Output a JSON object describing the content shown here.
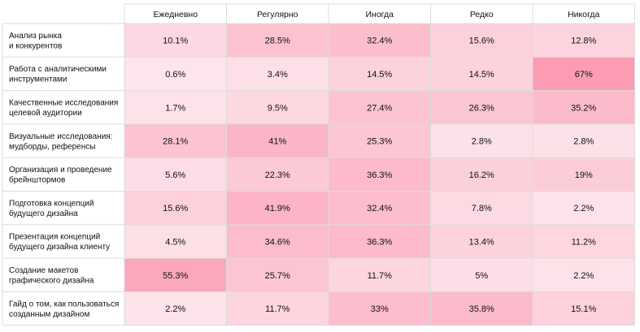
{
  "chart_data": {
    "type": "heatmap",
    "columns": [
      "Ежедневно",
      "Регулярно",
      "Иногда",
      "Редко",
      "Никогда"
    ],
    "rows": [
      {
        "label": [
          "Анализ рынка",
          "и конкурентов"
        ],
        "values": [
          10.1,
          28.5,
          32.4,
          15.6,
          12.8
        ]
      },
      {
        "label": [
          "Работа с аналитическими",
          "инструментами"
        ],
        "values": [
          0.6,
          3.4,
          14.5,
          14.5,
          67
        ]
      },
      {
        "label": [
          "Качественные исследования",
          "целевой аудитории"
        ],
        "values": [
          1.7,
          9.5,
          27.4,
          26.3,
          35.2
        ]
      },
      {
        "label": [
          "Визуальные исследования:",
          "мудборды, референсы"
        ],
        "values": [
          28.1,
          41,
          25.3,
          2.8,
          2.8
        ]
      },
      {
        "label": [
          "Организация и проведение",
          "брейнштормов"
        ],
        "values": [
          5.6,
          22.3,
          36.3,
          16.2,
          19
        ]
      },
      {
        "label": [
          "Подготовка концепций",
          "будущего дизайна"
        ],
        "values": [
          15.6,
          41.9,
          32.4,
          7.8,
          2.2
        ]
      },
      {
        "label": [
          "Презентация концепций",
          "будущего дизайна клиенту"
        ],
        "values": [
          4.5,
          34.6,
          36.3,
          13.4,
          11.2
        ]
      },
      {
        "label": [
          "Создание макетов",
          "графического дизайна"
        ],
        "values": [
          55.3,
          25.7,
          11.7,
          5,
          2.2
        ]
      },
      {
        "label": [
          "Гайд о том, как пользоваться",
          "созданным дизайном"
        ],
        "values": [
          2.2,
          11.7,
          33,
          35.8,
          15.1
        ]
      }
    ],
    "unit": "%",
    "color_scale": {
      "low": "#fde6ec",
      "high": "#fb9cb3"
    },
    "grid_color": "#dcdcdc"
  }
}
